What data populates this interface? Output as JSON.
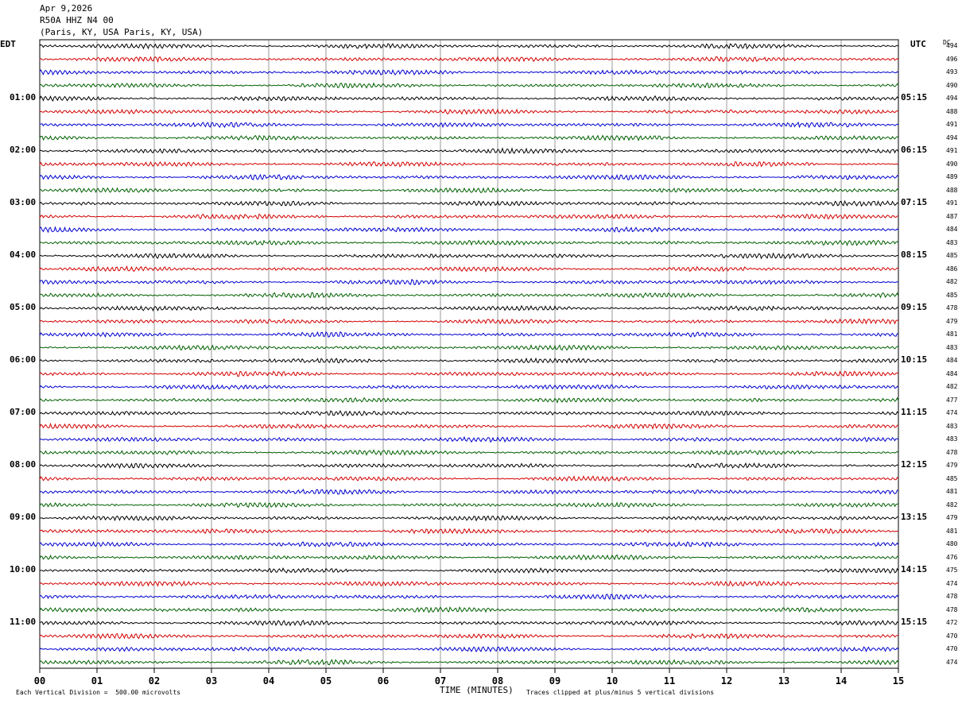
{
  "header": {
    "date": "Apr 9,2026",
    "station": "R50A HHZ N4 00",
    "location": "(Paris, KY, USA Paris, KY, USA)"
  },
  "labels": {
    "left_tz": "EDT",
    "right_tz": "UTC",
    "dc": "DC",
    "xlabel": "TIME (MINUTES)",
    "scale_note": "Each Vertical Division =  500.00 microvolts",
    "clip_note": "Traces clipped at plus/minus 5 vertical divisions"
  },
  "colors": {
    "trace_cycle": [
      "#000000",
      "#d40000",
      "#0000d0",
      "#006000"
    ],
    "grid": "#000000"
  },
  "chart_data": {
    "type": "line",
    "title": "Apr 9,2026 R50A HHZ N4 00 (Paris, KY, USA Paris, KY, USA)",
    "xlabel": "TIME (MINUTES)",
    "xlim": [
      0,
      15
    ],
    "x_ticks": [
      "00",
      "01",
      "02",
      "03",
      "04",
      "05",
      "06",
      "07",
      "08",
      "09",
      "10",
      "11",
      "12",
      "13",
      "14",
      "15"
    ],
    "rows_per_hour": 4,
    "row_minutes": 15,
    "left_hour_labels": [
      "01:00",
      "02:00",
      "03:00",
      "04:00",
      "05:00",
      "06:00",
      "07:00",
      "08:00",
      "09:00",
      "10:00",
      "11:00"
    ],
    "right_hour_labels": [
      "05:15",
      "06:15",
      "07:15",
      "08:15",
      "09:15",
      "10:15",
      "11:15",
      "12:15",
      "13:15",
      "14:15",
      "15:15"
    ],
    "dc_values": [
      494,
      496,
      493,
      490,
      494,
      488,
      491,
      494,
      491,
      490,
      489,
      488,
      491,
      487,
      484,
      483,
      485,
      486,
      482,
      485,
      478,
      479,
      481,
      483,
      484,
      484,
      482,
      477,
      474,
      483,
      483,
      478,
      479,
      485,
      481,
      482,
      479,
      481,
      480,
      476,
      475,
      474,
      478,
      478,
      472,
      470,
      470,
      474
    ],
    "vertical_division_microvolts": 500.0,
    "clip_divisions": 5
  }
}
